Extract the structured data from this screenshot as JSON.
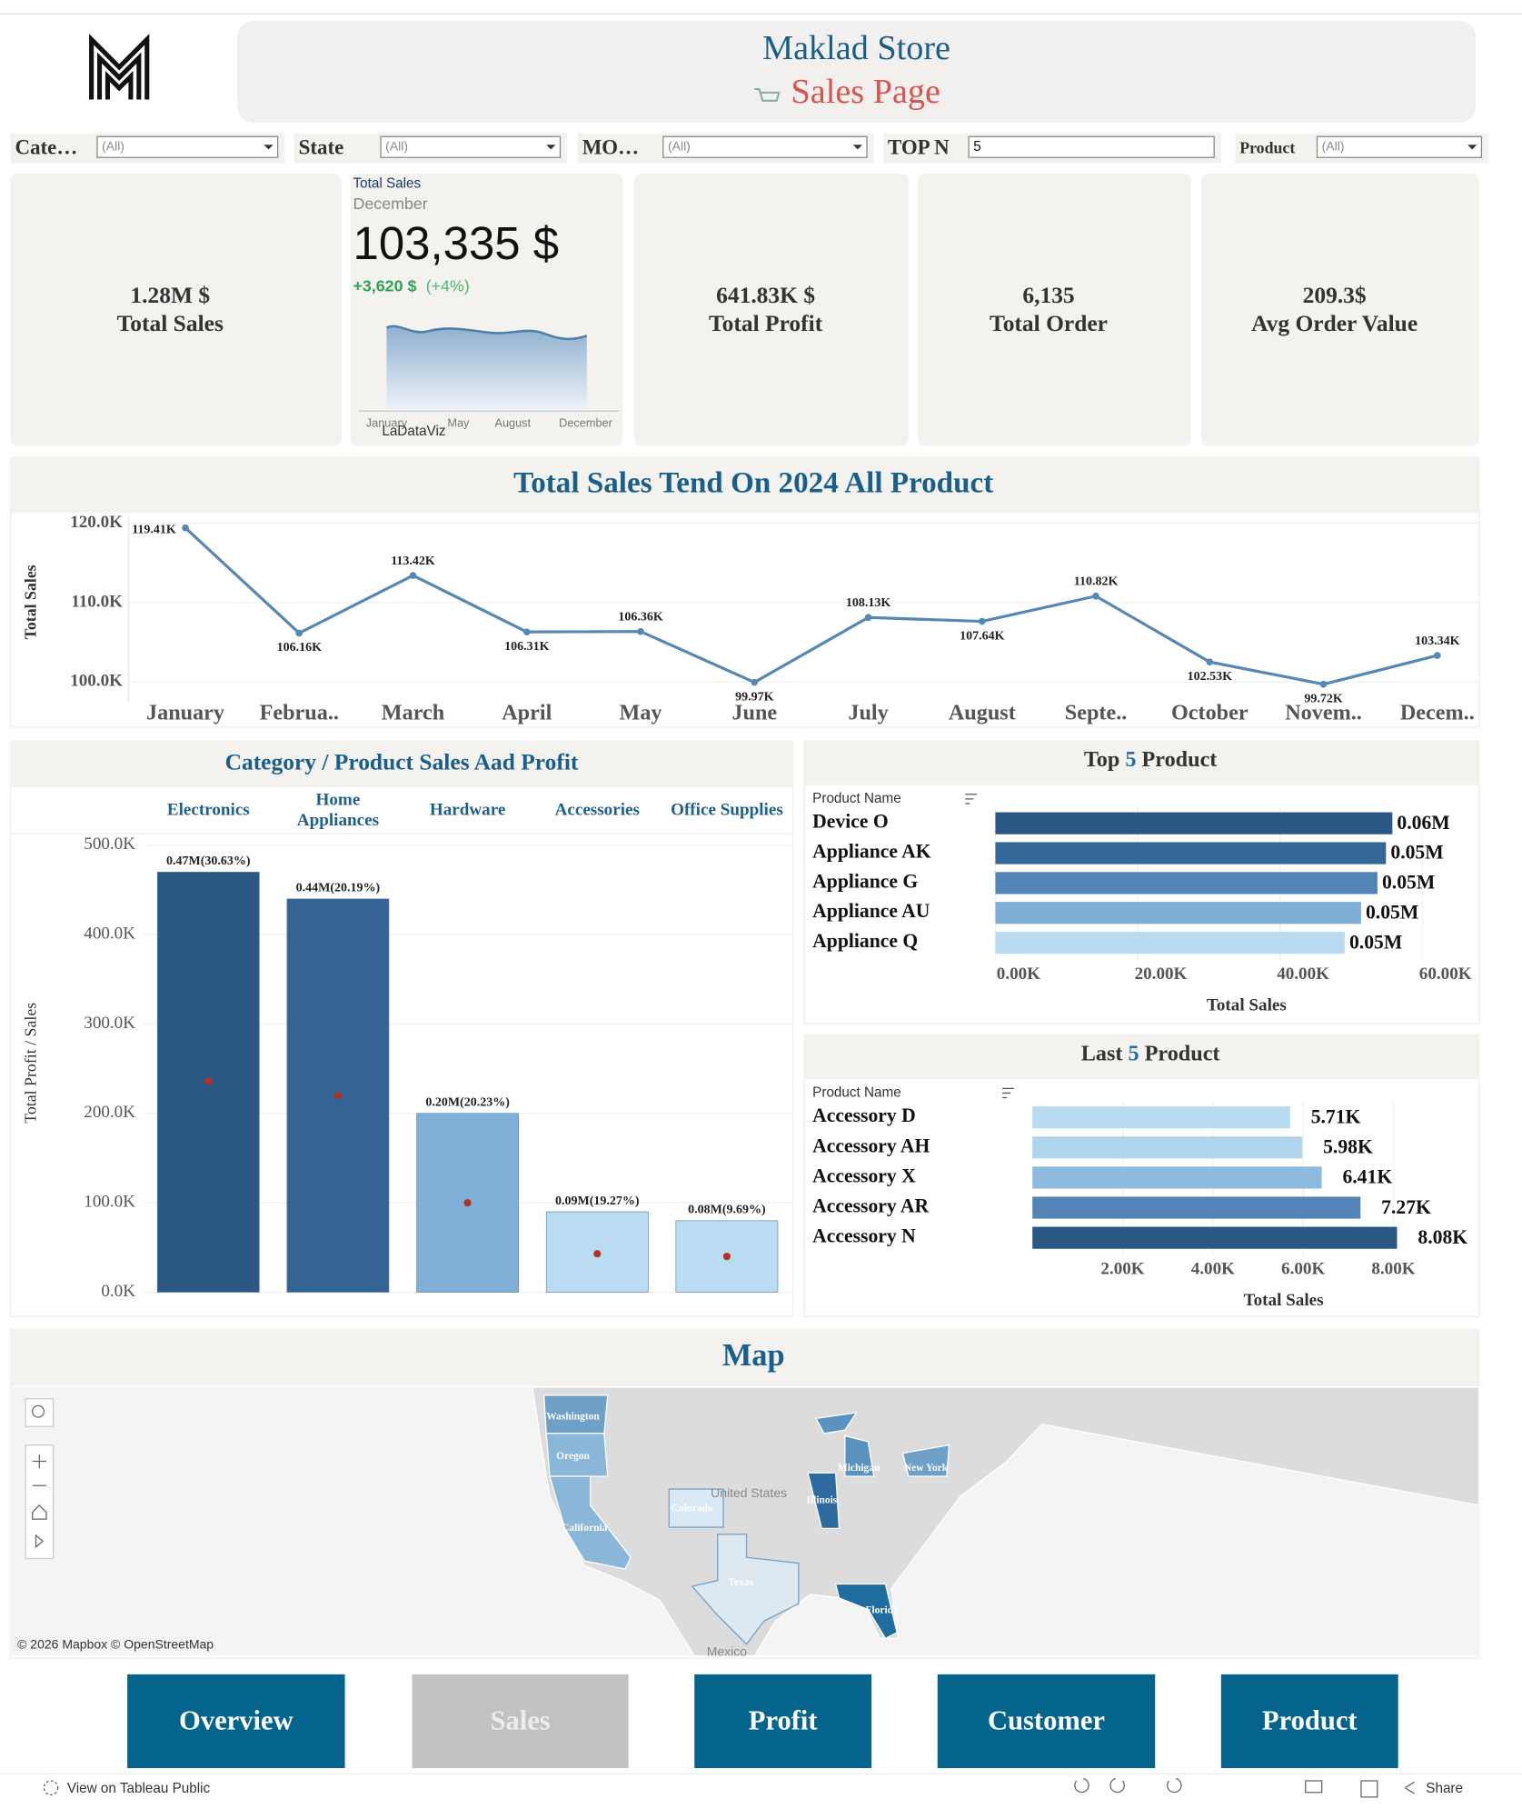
{
  "header": {
    "title": "Maklad Store",
    "subtitle": "Sales Page"
  },
  "filters": [
    {
      "label": "Cate…",
      "value": "(All)"
    },
    {
      "label": "State",
      "value": "(All)"
    },
    {
      "label": "MO…",
      "value": "(All)"
    },
    {
      "label": "TOP N",
      "value": "5"
    },
    {
      "label": "Product",
      "value": "(All)"
    }
  ],
  "kpis": [
    {
      "value": "1.28M $",
      "label": "Total Sales"
    },
    {
      "value": "641.83K $",
      "label": "Total Profit"
    },
    {
      "value": "6,135",
      "label": "Total Order"
    },
    {
      "value": "209.3$",
      "label": "Avg Order Value"
    }
  ],
  "sparkline_card": {
    "title": "Total Sales",
    "period": "December",
    "value": "103,335 $",
    "change": "+3,620 $",
    "change_pct": "(+4%)",
    "axis_labels": [
      "January",
      "May",
      "August",
      "December"
    ],
    "brand": "LaDataViz"
  },
  "chart_data": [
    {
      "type": "line",
      "title": "Total Sales Tend On 2024 All Product",
      "y_label": "Total Sales",
      "categories": [
        "January",
        "Februa..",
        "March",
        "April",
        "May",
        "June",
        "July",
        "August",
        "Septe..",
        "October",
        "Novem..",
        "Decem.."
      ],
      "values": [
        119410,
        106160,
        113420,
        106310,
        106360,
        99970,
        108130,
        107640,
        110820,
        102530,
        99720,
        103340
      ],
      "value_labels": [
        "119.41K",
        "106.16K",
        "113.42K",
        "106.31K",
        "106.36K",
        "99.97K",
        "108.13K",
        "107.64K",
        "110.82K",
        "102.53K",
        "99.72K",
        "103.34K"
      ],
      "color": "#5787b3",
      "ylim": [
        98400,
        121000
      ],
      "yticks": [
        {
          "value": 100000,
          "label": "100.0K"
        },
        {
          "value": 110000,
          "label": "110.0K"
        },
        {
          "value": 120000,
          "label": "120.0K"
        }
      ],
      "grid": true
    },
    {
      "type": "bar",
      "title": "Category / Product Sales Aad Profit",
      "y_label": "Total Profit / Sales",
      "categories": [
        "Electronics",
        "Home Appliances",
        "Hardware",
        "Accessories",
        "Office Supplies"
      ],
      "values": [
        470000,
        440000,
        200000,
        90000,
        80000
      ],
      "value_labels": [
        "0.47M(30.63%)",
        "0.44M(20.19%)",
        "0.20M(20.23%)",
        "0.09M(19.27%)",
        "0.08M(9.69%)"
      ],
      "colors": [
        "#2a5783",
        "#336493",
        "#80b0d8",
        "#badcf2",
        "#badcf2"
      ],
      "profit_values": [
        236000,
        220000,
        100000,
        43000,
        40000
      ],
      "profit_color": "#b5321f",
      "ylim": [
        0,
        500000
      ],
      "yticks": [
        {
          "value": 0,
          "label": "0.0K"
        },
        {
          "value": 100000,
          "label": "100.0K"
        },
        {
          "value": 200000,
          "label": "200.0K"
        },
        {
          "value": 300000,
          "label": "300.0K"
        },
        {
          "value": 400000,
          "label": "400.0K"
        },
        {
          "value": 500000,
          "label": "500.0K"
        }
      ],
      "grid": true
    },
    {
      "type": "hbar",
      "title": [
        "Top",
        "5",
        "Product"
      ],
      "row_header": "Product Name",
      "categories": [
        "Device O",
        "Appliance AK",
        "Appliance G",
        "Appliance AU",
        "Appliance Q"
      ],
      "values": [
        55800,
        54900,
        53700,
        51400,
        49100
      ],
      "value_labels": [
        "0.06M",
        "0.05M",
        "0.05M",
        "0.05M",
        "0.05M"
      ],
      "colors": [
        "#2a5783",
        "#336795",
        "#5284b5",
        "#7eaed6",
        "#b9dbf1"
      ],
      "xlim": [
        0,
        68000
      ],
      "xticks": [
        {
          "value": 0,
          "label": "0.00K"
        },
        {
          "value": 20000,
          "label": "20.00K"
        },
        {
          "value": 40000,
          "label": "40.00K"
        },
        {
          "value": 60000,
          "label": "60.00K"
        }
      ],
      "x_label": "Total Sales"
    },
    {
      "type": "hbar",
      "title": [
        "Last",
        "5",
        "Product"
      ],
      "row_header": "Product Name",
      "categories": [
        "Accessory D",
        "Accessory AH",
        "Accessory X",
        "Accessory AR",
        "Accessory N"
      ],
      "values": [
        5710,
        5980,
        6410,
        7270,
        8080
      ],
      "value_labels": [
        "5.71K",
        "5.98K",
        "6.41K",
        "7.27K",
        "8.08K"
      ],
      "colors": [
        "#b9dbf1",
        "#b1d4ee",
        "#8dbbe0",
        "#5284b5",
        "#2a5783"
      ],
      "xlim": [
        0,
        9900
      ],
      "xticks": [
        {
          "value": 2000,
          "label": "2.00K"
        },
        {
          "value": 4000,
          "label": "4.00K"
        },
        {
          "value": 6000,
          "label": "6.00K"
        },
        {
          "value": 8000,
          "label": "8.00K"
        }
      ],
      "x_label": "Total Sales"
    }
  ],
  "map": {
    "title": "Map",
    "state_labels": [
      "Washington",
      "Oregon",
      "California",
      "Colorado",
      "Texas",
      "Illinois",
      "Michigan",
      "New York",
      "Florida"
    ],
    "country_labels": [
      "United States",
      "Mexico"
    ],
    "attribution": "© 2026 Mapbox © OpenStreetMap"
  },
  "nav": [
    "Overview",
    "Sales",
    "Profit",
    "Customer",
    "Product"
  ],
  "footer": {
    "link": "View on Tableau Public",
    "share": "Share"
  }
}
